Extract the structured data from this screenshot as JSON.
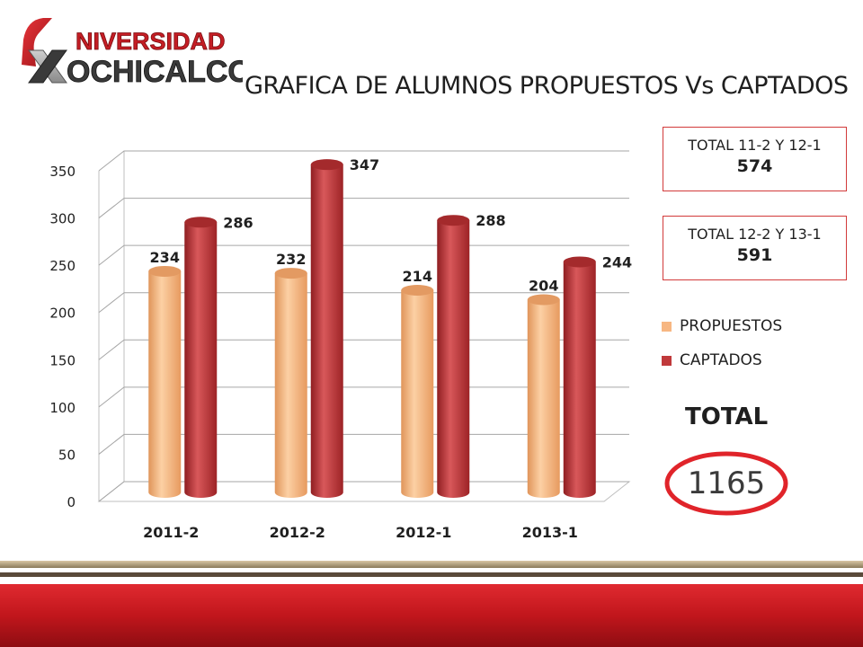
{
  "header": {
    "logo_alt": "UNIVERSIDAD XOCHICALCO",
    "logo_line1": "NIVERSIDAD",
    "logo_line2": "OCHICALCO",
    "title": "GRAFICA DE ALUMNOS PROPUESTOS Vs CAPTADOS"
  },
  "chart_data": {
    "type": "bar",
    "categories": [
      "2011-2",
      "2012-2",
      "2012-1",
      "2013-1"
    ],
    "series": [
      {
        "name": "PROPUESTOS",
        "values": [
          234,
          232,
          214,
          204
        ],
        "color": "#f7b782"
      },
      {
        "name": "CAPTADOS",
        "values": [
          286,
          347,
          288,
          244
        ],
        "color": "#c0393b"
      }
    ],
    "ylim": [
      0,
      350
    ],
    "yticks": [
      0,
      50,
      100,
      150,
      200,
      250,
      300,
      350
    ],
    "grid": true,
    "legend": "right",
    "data_labels": true
  },
  "summary": {
    "box1": {
      "label": "TOTAL 11-2 Y 12-1",
      "value": "574"
    },
    "box2": {
      "label": "TOTAL 12-2 Y 13-1",
      "value": "591"
    },
    "total_label": "TOTAL",
    "total_value": "1165"
  },
  "colors": {
    "accent_red": "#c41e25",
    "circle_red": "#e0242a"
  }
}
